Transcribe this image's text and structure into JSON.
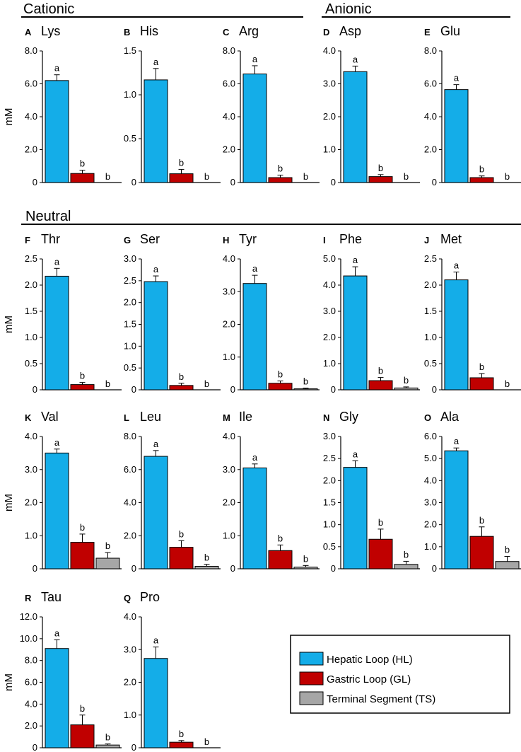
{
  "sections": [
    {
      "title": "Cationic"
    },
    {
      "title": "Anionic"
    },
    {
      "title": "Neutral"
    }
  ],
  "legend": {
    "items": [
      {
        "label": "Hepatic Loop (HL)",
        "color": "#14ade8"
      },
      {
        "label": "Gastric Loop (GL)",
        "color": "#c00000"
      },
      {
        "label": "Terminal Segment (TS)",
        "color": "#a6a6a6"
      }
    ]
  },
  "chart_data": [
    {
      "type": "bar",
      "letter": "A",
      "title": "Lys",
      "ylabel": "mM",
      "ylim": [
        0,
        8
      ],
      "ticks": [
        "0",
        "2.0",
        "4.0",
        "6.0",
        "8.0"
      ],
      "categories": [
        "HL",
        "GL",
        "TS"
      ],
      "values": [
        6.2,
        0.55,
        0
      ],
      "errors": [
        0.35,
        0.2,
        0
      ],
      "letters": [
        "a",
        "b",
        "b"
      ]
    },
    {
      "type": "bar",
      "letter": "B",
      "title": "His",
      "ylabel": "",
      "ylim": [
        0,
        1.5
      ],
      "ticks": [
        "0",
        "0.5",
        "1.0",
        "1.5"
      ],
      "categories": [
        "HL",
        "GL",
        "TS"
      ],
      "values": [
        1.17,
        0.1,
        0
      ],
      "errors": [
        0.13,
        0.05,
        0
      ],
      "letters": [
        "a",
        "b",
        "b"
      ]
    },
    {
      "type": "bar",
      "letter": "C",
      "title": "Arg",
      "ylabel": "",
      "ylim": [
        0,
        8
      ],
      "ticks": [
        "0",
        "2.0",
        "4.0",
        "6.0",
        "8.0"
      ],
      "categories": [
        "HL",
        "GL",
        "TS"
      ],
      "values": [
        6.6,
        0.3,
        0
      ],
      "errors": [
        0.5,
        0.15,
        0
      ],
      "letters": [
        "a",
        "b",
        "b"
      ]
    },
    {
      "type": "bar",
      "letter": "D",
      "title": "Asp",
      "ylabel": "",
      "ylim": [
        0,
        4
      ],
      "ticks": [
        "0",
        "1.0",
        "2.0",
        "3.0",
        "4.0"
      ],
      "categories": [
        "HL",
        "GL",
        "TS"
      ],
      "values": [
        3.37,
        0.18,
        0
      ],
      "errors": [
        0.17,
        0.06,
        0
      ],
      "letters": [
        "a",
        "b",
        "b"
      ]
    },
    {
      "type": "bar",
      "letter": "E",
      "title": "Glu",
      "ylabel": "",
      "ylim": [
        0,
        8
      ],
      "ticks": [
        "0",
        "2.0",
        "4.0",
        "6.0",
        "8.0"
      ],
      "categories": [
        "HL",
        "GL",
        "TS"
      ],
      "values": [
        5.65,
        0.3,
        0
      ],
      "errors": [
        0.3,
        0.1,
        0
      ],
      "letters": [
        "a",
        "b",
        "b"
      ]
    },
    {
      "type": "bar",
      "letter": "F",
      "title": "Thr",
      "ylabel": "mM",
      "ylim": [
        0,
        2.5
      ],
      "ticks": [
        "0",
        "0.5",
        "1.0",
        "1.5",
        "2.0",
        "2.5"
      ],
      "categories": [
        "HL",
        "GL",
        "TS"
      ],
      "values": [
        2.17,
        0.1,
        0
      ],
      "errors": [
        0.15,
        0.04,
        0
      ],
      "letters": [
        "a",
        "b",
        "b"
      ]
    },
    {
      "type": "bar",
      "letter": "G",
      "title": "Ser",
      "ylabel": "",
      "ylim": [
        0,
        3
      ],
      "ticks": [
        "0",
        "0.5",
        "1.0",
        "1.5",
        "2.0",
        "2.5",
        "3.0"
      ],
      "categories": [
        "HL",
        "GL",
        "TS"
      ],
      "values": [
        2.48,
        0.1,
        0
      ],
      "errors": [
        0.13,
        0.05,
        0
      ],
      "letters": [
        "a",
        "b",
        "b"
      ]
    },
    {
      "type": "bar",
      "letter": "H",
      "title": "Tyr",
      "ylabel": "",
      "ylim": [
        0,
        4
      ],
      "ticks": [
        "0",
        "1.0",
        "2.0",
        "3.0",
        "4.0"
      ],
      "categories": [
        "HL",
        "GL",
        "TS"
      ],
      "values": [
        3.25,
        0.2,
        0.03
      ],
      "errors": [
        0.25,
        0.07,
        0.02
      ],
      "letters": [
        "a",
        "b",
        "b"
      ]
    },
    {
      "type": "bar",
      "letter": "I",
      "title": "Phe",
      "ylabel": "",
      "ylim": [
        0,
        5
      ],
      "ticks": [
        "0",
        "1.0",
        "2.0",
        "3.0",
        "4.0",
        "5.0"
      ],
      "categories": [
        "HL",
        "GL",
        "TS"
      ],
      "values": [
        4.35,
        0.35,
        0.07
      ],
      "errors": [
        0.35,
        0.12,
        0.04
      ],
      "letters": [
        "a",
        "b",
        "b"
      ]
    },
    {
      "type": "bar",
      "letter": "J",
      "title": "Met",
      "ylabel": "",
      "ylim": [
        0,
        2.5
      ],
      "ticks": [
        "0",
        "0.5",
        "1.0",
        "1.5",
        "2.0",
        "2.5"
      ],
      "categories": [
        "HL",
        "GL",
        "TS"
      ],
      "values": [
        2.1,
        0.23,
        0
      ],
      "errors": [
        0.15,
        0.08,
        0
      ],
      "letters": [
        "a",
        "b",
        "b"
      ]
    },
    {
      "type": "bar",
      "letter": "K",
      "title": "Val",
      "ylabel": "mM",
      "ylim": [
        0,
        4
      ],
      "ticks": [
        "0",
        "1.0",
        "2.0",
        "3.0",
        "4.0"
      ],
      "categories": [
        "HL",
        "GL",
        "TS"
      ],
      "values": [
        3.5,
        0.8,
        0.32
      ],
      "errors": [
        0.12,
        0.25,
        0.17
      ],
      "letters": [
        "a",
        "b",
        "b"
      ]
    },
    {
      "type": "bar",
      "letter": "L",
      "title": "Leu",
      "ylabel": "",
      "ylim": [
        0,
        8
      ],
      "ticks": [
        "0",
        "2.0",
        "4.0",
        "6.0",
        "8.0"
      ],
      "categories": [
        "HL",
        "GL",
        "TS"
      ],
      "values": [
        6.8,
        1.3,
        0.15
      ],
      "errors": [
        0.35,
        0.4,
        0.12
      ],
      "letters": [
        "a",
        "b",
        "b"
      ]
    },
    {
      "type": "bar",
      "letter": "M",
      "title": "Ile",
      "ylabel": "",
      "ylim": [
        0,
        4
      ],
      "ticks": [
        "0",
        "1.0",
        "2.0",
        "3.0",
        "4.0"
      ],
      "categories": [
        "HL",
        "GL",
        "TS"
      ],
      "values": [
        3.05,
        0.55,
        0.05
      ],
      "errors": [
        0.12,
        0.17,
        0.05
      ],
      "letters": [
        "a",
        "b",
        "b"
      ]
    },
    {
      "type": "bar",
      "letter": "N",
      "title": "Gly",
      "ylabel": "",
      "ylim": [
        0,
        3
      ],
      "ticks": [
        "0",
        "0.5",
        "1.0",
        "1.5",
        "2.0",
        "2.5",
        "3.0"
      ],
      "categories": [
        "HL",
        "GL",
        "TS"
      ],
      "values": [
        2.3,
        0.67,
        0.1
      ],
      "errors": [
        0.15,
        0.23,
        0.07
      ],
      "letters": [
        "a",
        "b",
        "b"
      ]
    },
    {
      "type": "bar",
      "letter": "O",
      "title": "Ala",
      "ylabel": "",
      "ylim": [
        0,
        6
      ],
      "ticks": [
        "0",
        "1.0",
        "2.0",
        "3.0",
        "4.0",
        "5.0",
        "6.0"
      ],
      "categories": [
        "HL",
        "GL",
        "TS"
      ],
      "values": [
        5.35,
        1.47,
        0.33
      ],
      "errors": [
        0.13,
        0.43,
        0.23
      ],
      "letters": [
        "a",
        "b",
        "b"
      ]
    },
    {
      "type": "bar",
      "letter": "R",
      "title": "Tau",
      "ylabel": "mM",
      "ylim": [
        0,
        12
      ],
      "ticks": [
        "0",
        "2.0",
        "4.0",
        "6.0",
        "8.0",
        "10.0",
        "12.0"
      ],
      "categories": [
        "HL",
        "GL",
        "TS"
      ],
      "values": [
        9.1,
        2.1,
        0.25
      ],
      "errors": [
        0.8,
        0.9,
        0.1
      ],
      "letters": [
        "a",
        "b",
        "b"
      ]
    },
    {
      "type": "bar",
      "letter": "Q",
      "title": "Pro",
      "ylabel": "",
      "ylim": [
        0,
        4
      ],
      "ticks": [
        "0",
        "1.0",
        "2.0",
        "3.0",
        "4.0"
      ],
      "categories": [
        "HL",
        "GL",
        "TS"
      ],
      "values": [
        2.73,
        0.17,
        0
      ],
      "errors": [
        0.35,
        0.05,
        0
      ],
      "letters": [
        "a",
        "b",
        "b"
      ]
    }
  ]
}
